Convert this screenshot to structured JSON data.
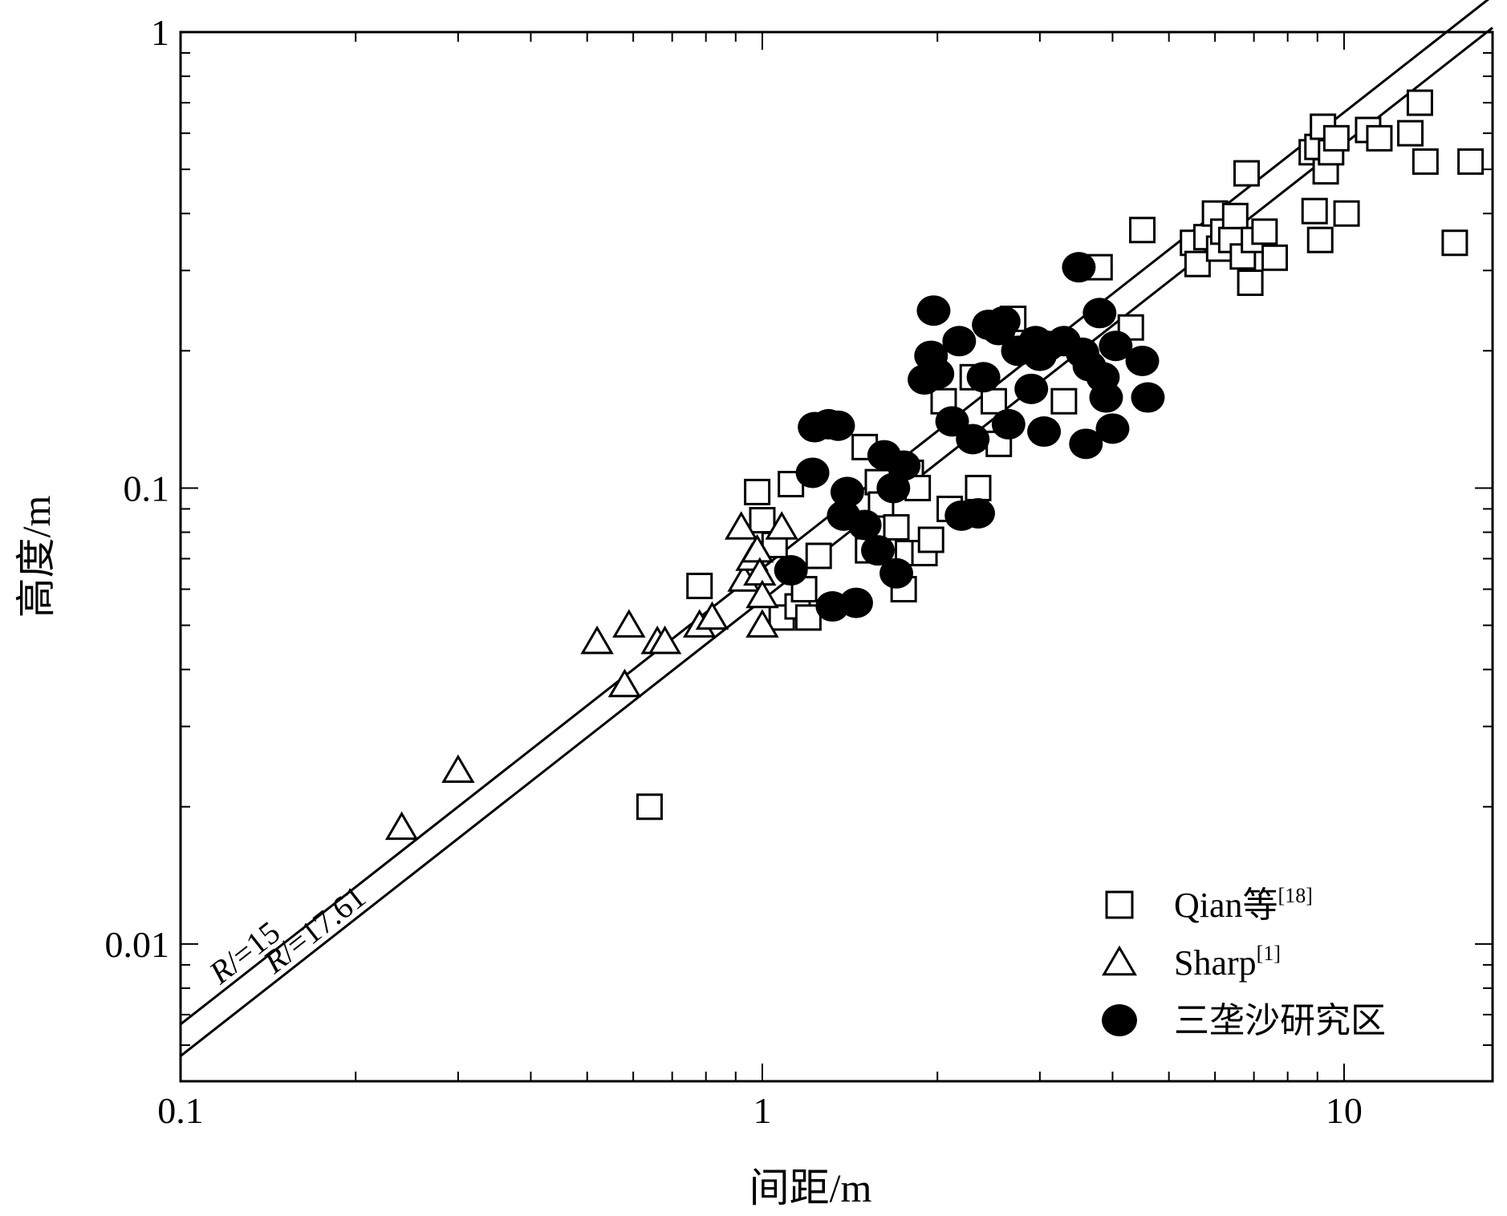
{
  "chart_data": {
    "type": "scatter",
    "xscale": "log",
    "yscale": "log",
    "xlim": [
      0.1,
      18
    ],
    "ylim": [
      0.005,
      1
    ],
    "xlabel": "间距/m",
    "ylabel": "高度/m",
    "xticks": [
      {
        "value": 0.1,
        "label": "0.1"
      },
      {
        "value": 1,
        "label": "1"
      },
      {
        "value": 10,
        "label": "10"
      }
    ],
    "yticks": [
      {
        "value": 0.01,
        "label": "0.01"
      },
      {
        "value": 0.1,
        "label": "0.1"
      },
      {
        "value": 1,
        "label": "1"
      }
    ],
    "legend_position": "bottom-right",
    "reference_lines": [
      {
        "label_prefix": "R",
        "label_mid": "/",
        "label_suffix": "=15",
        "ratio": 15
      },
      {
        "label_prefix": "R",
        "label_mid": "/",
        "label_suffix": "=17.61",
        "ratio": 17.61
      }
    ],
    "series": [
      {
        "name": "Qian等",
        "name_sup": "[18]",
        "marker": "square",
        "points": [
          [
            0.64,
            0.02
          ],
          [
            0.78,
            0.061
          ],
          [
            0.98,
            0.098
          ],
          [
            1.0,
            0.085
          ],
          [
            1.05,
            0.075
          ],
          [
            1.08,
            0.052
          ],
          [
            1.12,
            0.102
          ],
          [
            1.15,
            0.055
          ],
          [
            1.18,
            0.06
          ],
          [
            1.2,
            0.052
          ],
          [
            1.25,
            0.071
          ],
          [
            1.5,
            0.123
          ],
          [
            1.52,
            0.073
          ],
          [
            1.58,
            0.103
          ],
          [
            1.6,
            0.092
          ],
          [
            1.7,
            0.082
          ],
          [
            1.75,
            0.06
          ],
          [
            1.78,
            0.072
          ],
          [
            1.8,
            0.108
          ],
          [
            1.85,
            0.1
          ],
          [
            1.9,
            0.072
          ],
          [
            1.95,
            0.077
          ],
          [
            2.05,
            0.155
          ],
          [
            2.1,
            0.09
          ],
          [
            2.3,
            0.175
          ],
          [
            2.35,
            0.1
          ],
          [
            2.5,
            0.155
          ],
          [
            2.55,
            0.125
          ],
          [
            2.7,
            0.235
          ],
          [
            3.3,
            0.155
          ],
          [
            3.8,
            0.305
          ],
          [
            4.3,
            0.225
          ],
          [
            4.5,
            0.368
          ],
          [
            5.5,
            0.345
          ],
          [
            5.6,
            0.31
          ],
          [
            5.8,
            0.355
          ],
          [
            6.0,
            0.4
          ],
          [
            6.1,
            0.335
          ],
          [
            6.2,
            0.365
          ],
          [
            6.4,
            0.35
          ],
          [
            6.5,
            0.395
          ],
          [
            6.7,
            0.322
          ],
          [
            6.8,
            0.49
          ],
          [
            6.9,
            0.282
          ],
          [
            7.0,
            0.35
          ],
          [
            7.3,
            0.365
          ],
          [
            7.6,
            0.32
          ],
          [
            8.8,
            0.545
          ],
          [
            8.9,
            0.405
          ],
          [
            9.0,
            0.56
          ],
          [
            9.1,
            0.35
          ],
          [
            9.2,
            0.62
          ],
          [
            9.3,
            0.495
          ],
          [
            9.5,
            0.545
          ],
          [
            9.7,
            0.585
          ],
          [
            10.1,
            0.4
          ],
          [
            11.0,
            0.61
          ],
          [
            11.5,
            0.585
          ],
          [
            13.0,
            0.6
          ],
          [
            13.5,
            0.7
          ],
          [
            13.8,
            0.52
          ],
          [
            15.5,
            0.345
          ],
          [
            16.5,
            0.52
          ]
        ]
      },
      {
        "name": "Sharp",
        "name_sup": "[1]",
        "marker": "triangle",
        "points": [
          [
            0.24,
            0.018
          ],
          [
            0.3,
            0.024
          ],
          [
            0.52,
            0.046
          ],
          [
            0.58,
            0.037
          ],
          [
            0.59,
            0.05
          ],
          [
            0.66,
            0.046
          ],
          [
            0.68,
            0.046
          ],
          [
            0.78,
            0.05
          ],
          [
            0.82,
            0.052
          ],
          [
            0.92,
            0.082
          ],
          [
            0.93,
            0.063
          ],
          [
            0.96,
            0.07
          ],
          [
            0.98,
            0.073
          ],
          [
            0.99,
            0.065
          ],
          [
            1.0,
            0.058
          ],
          [
            1.0,
            0.05
          ],
          [
            1.08,
            0.082
          ]
        ]
      },
      {
        "name": "三垄沙研究区",
        "name_sup": "",
        "marker": "circle",
        "points": [
          [
            1.12,
            0.066
          ],
          [
            1.22,
            0.108
          ],
          [
            1.23,
            0.136
          ],
          [
            1.3,
            0.138
          ],
          [
            1.35,
            0.137
          ],
          [
            1.32,
            0.055
          ],
          [
            1.38,
            0.087
          ],
          [
            1.4,
            0.098
          ],
          [
            1.45,
            0.056
          ],
          [
            1.5,
            0.083
          ],
          [
            1.58,
            0.073
          ],
          [
            1.62,
            0.118
          ],
          [
            1.68,
            0.1
          ],
          [
            1.7,
            0.065
          ],
          [
            1.75,
            0.112
          ],
          [
            1.9,
            0.173
          ],
          [
            1.95,
            0.195
          ],
          [
            1.97,
            0.245
          ],
          [
            2.0,
            0.178
          ],
          [
            2.12,
            0.14
          ],
          [
            2.18,
            0.21
          ],
          [
            2.2,
            0.087
          ],
          [
            2.3,
            0.128
          ],
          [
            2.35,
            0.088
          ],
          [
            2.4,
            0.175
          ],
          [
            2.45,
            0.228
          ],
          [
            2.55,
            0.222
          ],
          [
            2.6,
            0.232
          ],
          [
            2.65,
            0.138
          ],
          [
            2.75,
            0.2
          ],
          [
            2.9,
            0.165
          ],
          [
            2.95,
            0.21
          ],
          [
            3.0,
            0.195
          ],
          [
            3.05,
            0.133
          ],
          [
            3.1,
            0.205
          ],
          [
            3.3,
            0.21
          ],
          [
            3.5,
            0.305
          ],
          [
            3.55,
            0.198
          ],
          [
            3.6,
            0.125
          ],
          [
            3.65,
            0.185
          ],
          [
            3.8,
            0.242
          ],
          [
            3.85,
            0.175
          ],
          [
            3.9,
            0.158
          ],
          [
            4.0,
            0.135
          ],
          [
            4.05,
            0.205
          ],
          [
            4.5,
            0.19
          ],
          [
            4.6,
            0.158
          ]
        ]
      }
    ]
  }
}
